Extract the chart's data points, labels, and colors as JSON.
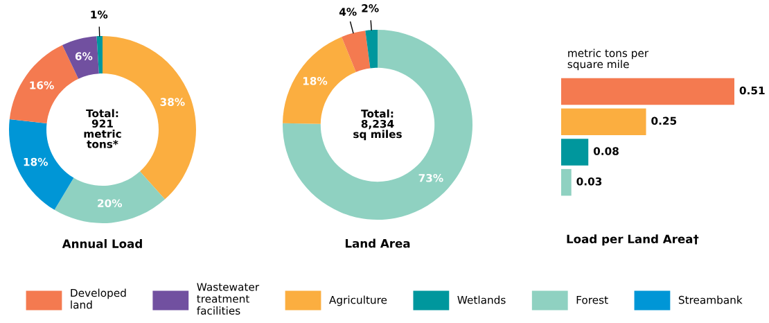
{
  "chart_data": [
    {
      "type": "donut",
      "title": "Annual Load",
      "categories": [
        "Agriculture",
        "Forest",
        "Streambank",
        "Developed land",
        "Wastewater treatment facilities",
        "Wetlands"
      ],
      "values": [
        38,
        20,
        18,
        16,
        6,
        1
      ],
      "value_labels": [
        "38%",
        "20%",
        "18%",
        "16%",
        "6%",
        "1%"
      ],
      "colors": [
        "#fbae40",
        "#8fd1c1",
        "#0096d6",
        "#f47a50",
        "#7150a0",
        "#00979d"
      ],
      "annotations": [
        "Total:\n921\nmetric\ntons*"
      ],
      "legend": "bottom"
    },
    {
      "type": "donut",
      "title": "Land Area",
      "categories": [
        null,
        null,
        null,
        null
      ],
      "values": [
        73,
        18,
        4,
        2
      ],
      "value_labels": [
        "73%",
        "18%",
        "4%",
        "2%"
      ],
      "colors": [
        "#8fd1c1",
        "#fbae40",
        "#f47a50",
        "#00979d"
      ],
      "annotations": [
        "Total:\n8,234\nsq miles"
      ]
    },
    {
      "type": "bar",
      "orientation": "horizontal",
      "title": "Load per Land Area†",
      "categories": [
        null,
        null,
        null,
        null
      ],
      "values": [
        0.51,
        0.25,
        0.08,
        0.03
      ],
      "colors": [
        "#f47a50",
        "#fbae40",
        "#00979d",
        "#8fd1c1"
      ],
      "data_labels": true,
      "annotations": [
        "metric tons per\nsquare mile"
      ]
    }
  ]
}
